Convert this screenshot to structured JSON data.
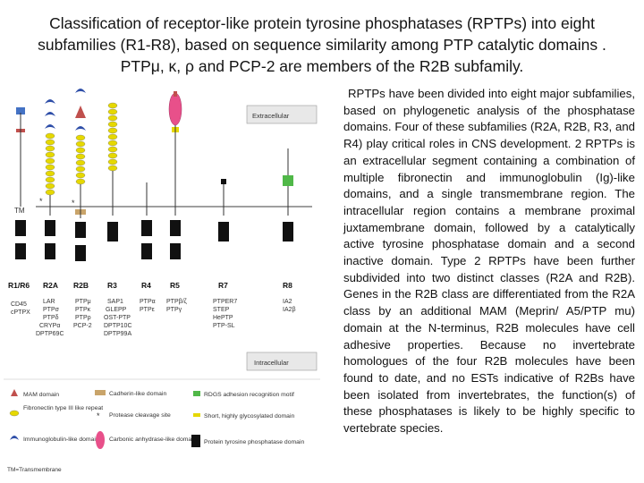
{
  "title": "Classification of receptor-like protein tyrosine phosphatases (RPTPs) into eight subfamilies (R1-R8), based on sequence similarity among PTP catalytic domains . PTPμ, κ, ρ and PCP-2 are members of the R2B subfamily.",
  "body_text": "RPTPs have been divided into eight major subfamilies, based on phylogenetic analysis of the phosphatase domains. Four of these subfamilies (R2A, R2B, R3, and R4) play critical roles in CNS development. 2 RPTPs is an extracellular segment containing a combination of multiple fibronectin and immunoglobulin (Ig)-like domains, and a single transmembrane region. The intracellular region contains a membrane proximal juxtamembrane domain, followed by a catalytically active tyrosine phosphatase domain and a second inactive domain. Type 2 RPTPs have been further subdivided into two distinct classes (R2A and R2B). Genes in the R2B class are differentiated from the R2A class by an additional MAM (Meprin/ A5/PTP mu) domain at the N-terminus, R2B molecules have cell adhesive properties. Because no invertebrate homologues of the four R2B molecules have been found to date, and no ESTs indicative of R2Bs have been isolated from invertebrates, the function(s) of these phosphatases is likely to be highly specific to vertebrate species.",
  "figure": {
    "extracellular_label": "Extracellular",
    "intracellular_label": "Intracellular",
    "tm_label": "TM",
    "subfamilies": [
      {
        "name": "R1/R6",
        "members": [
          "CD45",
          "cPTPX"
        ]
      },
      {
        "name": "R2A",
        "members": [
          "LAR",
          "PTPσ",
          "PTPδ",
          "CRYPα",
          "DPTP69C"
        ]
      },
      {
        "name": "R2B",
        "members": [
          "PTPμ",
          "PTPκ",
          "PTPρ",
          "PCP-2"
        ]
      },
      {
        "name": "R3",
        "members": [
          "SAP1",
          "GLEPP",
          "OST-PTP",
          "DPTP10C",
          "DPTP99A"
        ]
      },
      {
        "name": "R4",
        "members": [
          "PTPα",
          "PTPε"
        ]
      },
      {
        "name": "R5",
        "members": [
          "PTPβ/ζ",
          "PTPγ"
        ]
      },
      {
        "name": "R7",
        "members": [
          "PTPER7",
          "STEP",
          "HePTP",
          "PTP-SL"
        ]
      },
      {
        "name": "R8",
        "members": [
          "IA2",
          "IA2β"
        ]
      }
    ],
    "legend": {
      "mam": "MAM domain",
      "fn3": "Fibronectin type III like repeat",
      "ig": "Immunoglobulin-like domain",
      "cadherin": "Cadherin-like domain",
      "protease": "Protease cleavage site",
      "carbonic": "Carbonic anhydrase-like domain",
      "rdgs": "RDGS adhesion recognition motif",
      "glyco": "Short, highly glycosylated domain",
      "ptp": "Protein tyrosine phosphatase domain",
      "tm_def": "TM=Transmembrane"
    }
  }
}
